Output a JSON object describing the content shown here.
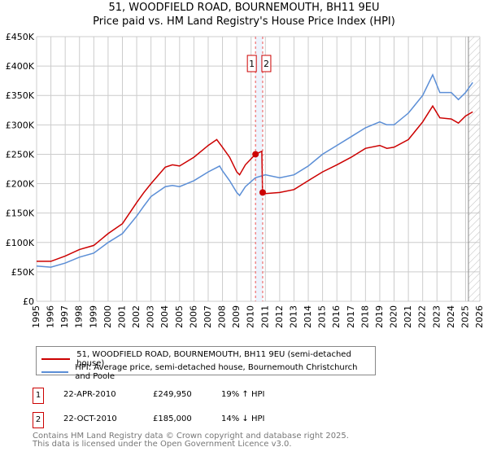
{
  "chart_data": {
    "type": "line",
    "title": "51, WOODFIELD ROAD, BOURNEMOUTH, BH11 9EU",
    "subtitle": "Price paid vs. HM Land Registry's House Price Index (HPI)",
    "xlim": [
      1995,
      2026
    ],
    "ylim": [
      0,
      450000
    ],
    "x_ticks": [
      "1995",
      "1996",
      "1997",
      "1998",
      "1999",
      "2000",
      "2001",
      "2002",
      "2003",
      "2004",
      "2005",
      "2006",
      "2007",
      "2008",
      "2009",
      "2010",
      "2011",
      "2012",
      "2013",
      "2014",
      "2015",
      "2016",
      "2017",
      "2018",
      "2019",
      "2020",
      "2021",
      "2022",
      "2023",
      "2024",
      "2025",
      "2026"
    ],
    "y_ticks": [
      {
        "v": 0,
        "label": "£0"
      },
      {
        "v": 50000,
        "label": "£50K"
      },
      {
        "v": 100000,
        "label": "£100K"
      },
      {
        "v": 150000,
        "label": "£150K"
      },
      {
        "v": 200000,
        "label": "£200K"
      },
      {
        "v": 250000,
        "label": "£250K"
      },
      {
        "v": 300000,
        "label": "£300K"
      },
      {
        "v": 350000,
        "label": "£350K"
      },
      {
        "v": 400000,
        "label": "£400K"
      },
      {
        "v": 450000,
        "label": "£450K"
      }
    ],
    "grid": true,
    "series": [
      {
        "name": "51, WOODFIELD ROAD, BOURNEMOUTH, BH11 9EU (semi-detached house)",
        "color": "#cc0000",
        "x": [
          1995,
          1996,
          1997,
          1998,
          1999,
          2000,
          2001,
          2002,
          2002.5,
          2003,
          2004,
          2004.5,
          2005,
          2006,
          2007,
          2007.6,
          2008,
          2008.5,
          2009,
          2009.2,
          2009.6,
          2010.3,
          2010.75,
          2010.8,
          2011,
          2012,
          2013,
          2014,
          2015,
          2016,
          2017,
          2018,
          2019,
          2019.5,
          2020,
          2021,
          2022,
          2022.7,
          2023.2,
          2024,
          2024.5,
          2025,
          2025.5
        ],
        "y": [
          68000,
          68000,
          77000,
          88000,
          95000,
          115000,
          132000,
          168000,
          185000,
          200000,
          228000,
          232000,
          230000,
          245000,
          265000,
          275000,
          262000,
          245000,
          220000,
          215000,
          232000,
          249950,
          255000,
          185000,
          183000,
          185000,
          190000,
          205000,
          220000,
          232000,
          245000,
          260000,
          265000,
          260000,
          262000,
          275000,
          305000,
          332000,
          312000,
          310000,
          303000,
          315000,
          322000
        ]
      },
      {
        "name": "HPI: Average price, semi-detached house, Bournemouth Christchurch and Poole",
        "color": "#5b8ed6",
        "x": [
          1995,
          1996,
          1997,
          1998,
          1999,
          2000,
          2001,
          2002,
          2002.5,
          2003,
          2004,
          2004.5,
          2005,
          2006,
          2007,
          2007.8,
          2008,
          2008.5,
          2009,
          2009.2,
          2009.6,
          2010.3,
          2011,
          2012,
          2013,
          2014,
          2015,
          2016,
          2017,
          2018,
          2019,
          2019.5,
          2020,
          2021,
          2022,
          2022.7,
          2023.2,
          2024,
          2024.5,
          2025,
          2025.5
        ],
        "y": [
          60000,
          58000,
          65000,
          75000,
          82000,
          100000,
          115000,
          145000,
          162000,
          178000,
          195000,
          197000,
          195000,
          205000,
          220000,
          230000,
          222000,
          205000,
          185000,
          180000,
          195000,
          210000,
          215000,
          210000,
          215000,
          230000,
          250000,
          265000,
          280000,
          295000,
          305000,
          300000,
          300000,
          320000,
          350000,
          385000,
          355000,
          355000,
          343000,
          355000,
          372000
        ]
      }
    ],
    "annotations": [
      {
        "label": "1",
        "x": 2010.31,
        "y": 249950
      },
      {
        "label": "2",
        "x": 2010.81,
        "y": 185000
      }
    ],
    "forecast_hatch_from": 2025.2
  },
  "legend": {
    "red": "51, WOODFIELD ROAD, BOURNEMOUTH, BH11 9EU (semi-detached house)",
    "blue": "HPI: Average price, semi-detached house, Bournemouth Christchurch and Poole"
  },
  "sales": [
    {
      "num": "1",
      "date": "22-APR-2010",
      "price": "£249,950",
      "hpi": "19% ↑ HPI"
    },
    {
      "num": "2",
      "date": "22-OCT-2010",
      "price": "£185,000",
      "hpi": "14% ↓ HPI"
    }
  ],
  "footer": {
    "line1": "Contains HM Land Registry data © Crown copyright and database right 2025.",
    "line2": "This data is licensed under the Open Government Licence v3.0."
  }
}
